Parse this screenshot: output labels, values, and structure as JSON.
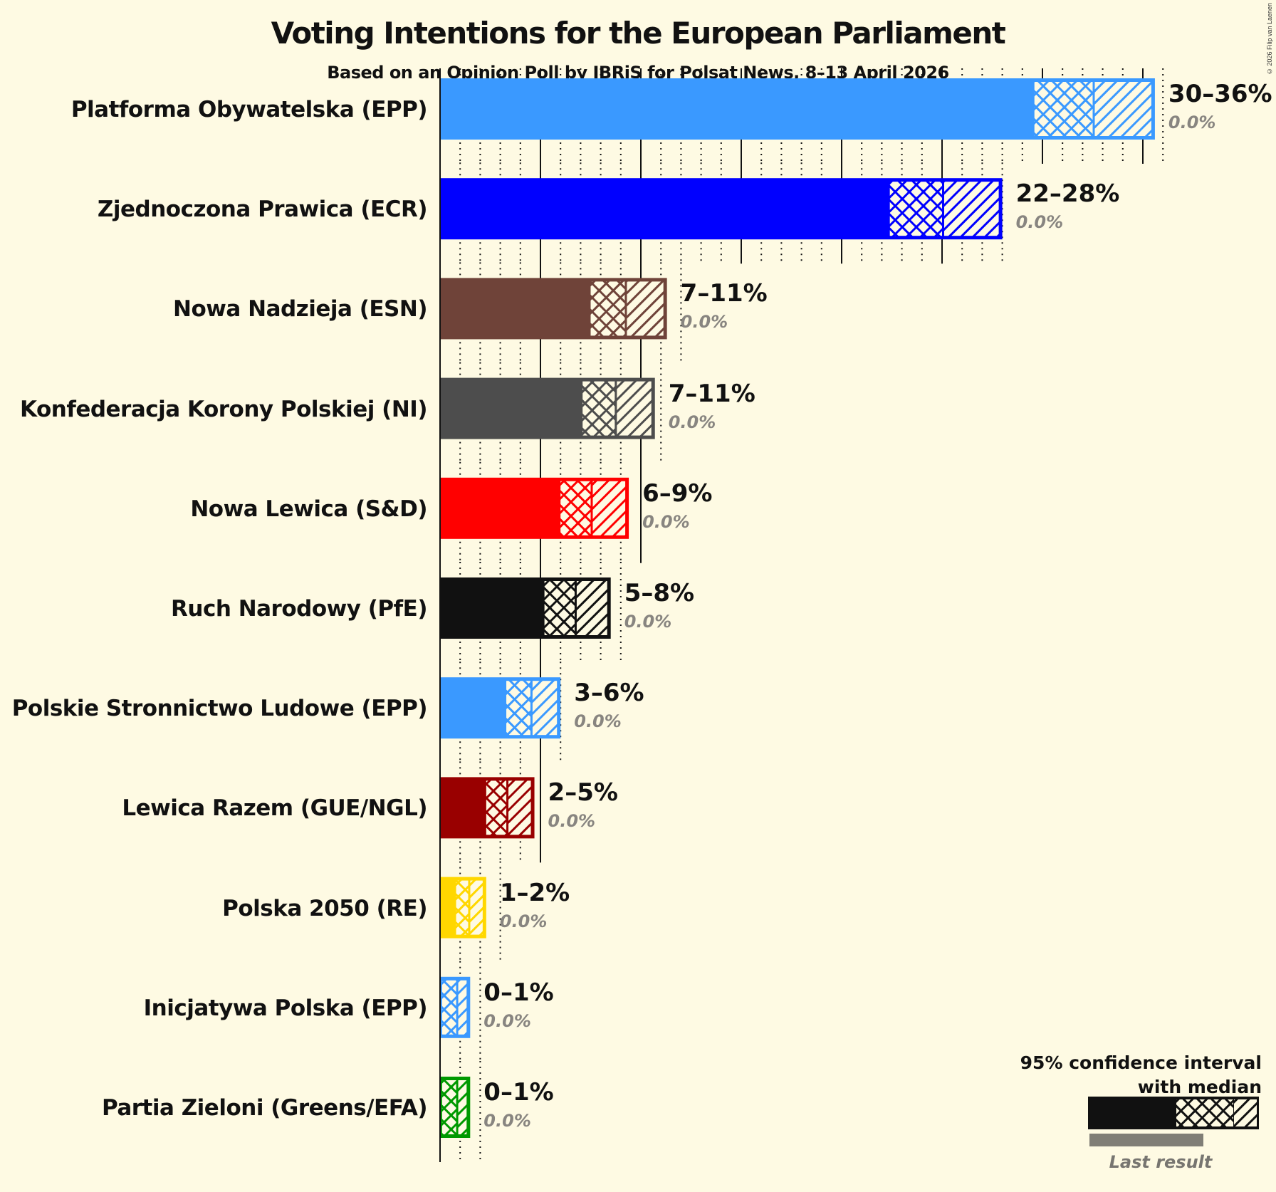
{
  "header": {
    "title": "Voting Intentions for the European Parliament",
    "subtitle": "Based on an Opinion Poll by IBRiS for Polsat News, 8–13 April 2026",
    "copyright": "© 2026 Filip van Laenen"
  },
  "legend": {
    "line1": "95% confidence interval",
    "line2": "with median",
    "last_result": "Last result"
  },
  "chart_data": {
    "type": "bar",
    "orientation": "horizontal",
    "title": "Voting Intentions for the European Parliament",
    "subtitle": "Based on an Opinion Poll by IBRiS for Polsat News, 8–13 April 2026",
    "xlabel": "",
    "ylabel": "",
    "xlim": [
      0,
      36
    ],
    "grid": {
      "major_every": 5,
      "minor_every": 1
    },
    "legend_position": "bottom-right",
    "categories": [
      "Platforma Obywatelska (EPP)",
      "Zjednoczona Prawica (ECR)",
      "Nowa Nadzieja (ESN)",
      "Konfederacja Korony Polskiej (NI)",
      "Nowa Lewica (S&D)",
      "Ruch Narodowy (PfE)",
      "Polskie Stronnictwo Ludowe (EPP)",
      "Lewica Razem (GUE/NGL)",
      "Polska 2050 (RE)",
      "Inicjatywa Polska (EPP)",
      "Partia Zieloni (Greens/EFA)"
    ],
    "series": [
      {
        "name": "CI low",
        "values": [
          29.6,
          22.4,
          7.5,
          7.1,
          6.0,
          5.2,
          3.3,
          2.3,
          0.8,
          0.1,
          0.1
        ]
      },
      {
        "name": "Median",
        "values": [
          32.5,
          25.0,
          9.2,
          8.7,
          7.5,
          6.7,
          4.5,
          3.3,
          1.4,
          0.8,
          0.8
        ]
      },
      {
        "name": "CI high",
        "values": [
          35.6,
          28.0,
          11.3,
          10.7,
          9.4,
          8.5,
          6.0,
          4.7,
          2.3,
          1.5,
          1.5
        ]
      },
      {
        "name": "Last result",
        "values": [
          0.0,
          0.0,
          0.0,
          0.0,
          0.0,
          0.0,
          0.0,
          0.0,
          0.0,
          0.0,
          0.0
        ]
      }
    ],
    "range_labels": [
      "30–36%",
      "22–28%",
      "7–11%",
      "7–11%",
      "6–9%",
      "5–8%",
      "3–6%",
      "2–5%",
      "1–2%",
      "0–1%",
      "0–1%"
    ],
    "last_labels": [
      "0.0%",
      "0.0%",
      "0.0%",
      "0.0%",
      "0.0%",
      "0.0%",
      "0.0%",
      "0.0%",
      "0.0%",
      "0.0%",
      "0.0%"
    ],
    "colors": [
      "#3A99FF",
      "#0000FF",
      "#6F4339",
      "#4D4D4D",
      "#FF0000",
      "#111111",
      "#3A99FF",
      "#990000",
      "#FFD700",
      "#3A99FF",
      "#009900"
    ]
  }
}
